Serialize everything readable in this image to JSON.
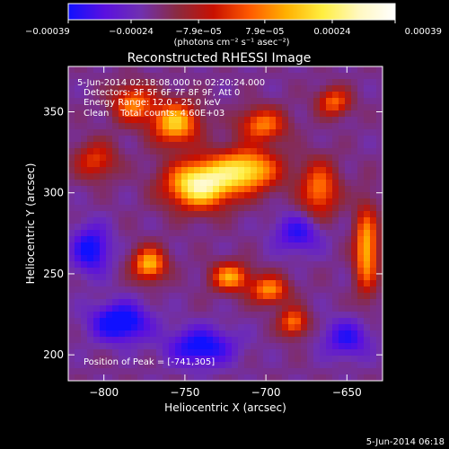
{
  "chart_data": {
    "type": "heatmap",
    "title": "Reconstructed RHESSI Image",
    "xlabel": "Heliocentric X (arcsec)",
    "ylabel": "Heliocentric Y (arcsec)",
    "xlim": [
      -822,
      -628
    ],
    "ylim": [
      184,
      378
    ],
    "xticks": [
      -800,
      -750,
      -700,
      -650
    ],
    "yticks": [
      200,
      250,
      300,
      350
    ],
    "xtick_labels": [
      "−800",
      "−750",
      "−700",
      "−650"
    ],
    "ytick_labels": [
      "200",
      "250",
      "300",
      "350"
    ],
    "colorbar": {
      "range": [
        -0.00039,
        0.00039
      ],
      "ticks": [
        -0.00039,
        -0.00024,
        -7.9e-05,
        7.9e-05,
        0.00024,
        0.00039
      ],
      "tick_labels": [
        "−0.00039",
        "−0.00024",
        "−7.9e−05",
        "7.9e−05",
        "0.00024",
        "0.00039"
      ],
      "unit_label": "(photons cm⁻² s⁻¹ asec⁻²)",
      "colors": [
        "#1010ff",
        "#5a10e0",
        "#7030b0",
        "#8a2a40",
        "#c81000",
        "#ff5a00",
        "#ffb000",
        "#ffee40",
        "#fff8c0",
        "#ffffff"
      ]
    },
    "annotations": [
      "5-Jun-2014 02:18:08.000 to 02:20:24.000",
      "Detectors: 3F 5F 6F 7F 8F 9F, Att 0",
      "Energy Range: 12.0 - 25.0 keV",
      "Clean    Total counts: 4.60E+03"
    ],
    "peak_label": "Position of Peak = [-741,305]",
    "peak": [
      -741,
      305
    ],
    "sources": [
      {
        "x": -741,
        "y": 305,
        "sx": 14,
        "sy": 10,
        "amp": 1.0
      },
      {
        "x": -712,
        "y": 314,
        "sx": 14,
        "sy": 9,
        "amp": 0.8
      },
      {
        "x": -756,
        "y": 343,
        "sx": 10,
        "sy": 9,
        "amp": 0.75
      },
      {
        "x": -782,
        "y": 355,
        "sx": 9,
        "sy": 8,
        "amp": 0.55
      },
      {
        "x": -702,
        "y": 342,
        "sx": 10,
        "sy": 7,
        "amp": 0.55
      },
      {
        "x": -667,
        "y": 302,
        "sx": 8,
        "sy": 12,
        "amp": 0.55
      },
      {
        "x": -772,
        "y": 256,
        "sx": 7,
        "sy": 7,
        "amp": 0.7
      },
      {
        "x": -722,
        "y": 248,
        "sx": 8,
        "sy": 6,
        "amp": 0.65
      },
      {
        "x": -698,
        "y": 240,
        "sx": 8,
        "sy": 6,
        "amp": 0.6
      },
      {
        "x": -683,
        "y": 220,
        "sx": 6,
        "sy": 6,
        "amp": 0.55
      },
      {
        "x": -638,
        "y": 265,
        "sx": 5,
        "sy": 18,
        "amp": 0.7
      },
      {
        "x": -658,
        "y": 356,
        "sx": 7,
        "sy": 6,
        "amp": 0.5
      },
      {
        "x": -805,
        "y": 320,
        "sx": 9,
        "sy": 8,
        "amp": 0.4
      },
      {
        "x": -790,
        "y": 220,
        "sx": 12,
        "sy": 8,
        "amp": -0.55
      },
      {
        "x": -740,
        "y": 205,
        "sx": 14,
        "sy": 8,
        "amp": -0.45
      },
      {
        "x": -808,
        "y": 265,
        "sx": 8,
        "sy": 10,
        "amp": -0.45
      },
      {
        "x": -680,
        "y": 275,
        "sx": 10,
        "sy": 8,
        "amp": -0.35
      },
      {
        "x": -650,
        "y": 210,
        "sx": 10,
        "sy": 8,
        "amp": -0.35
      }
    ]
  },
  "footer": {
    "timestamp": "5-Jun-2014 06:18"
  }
}
